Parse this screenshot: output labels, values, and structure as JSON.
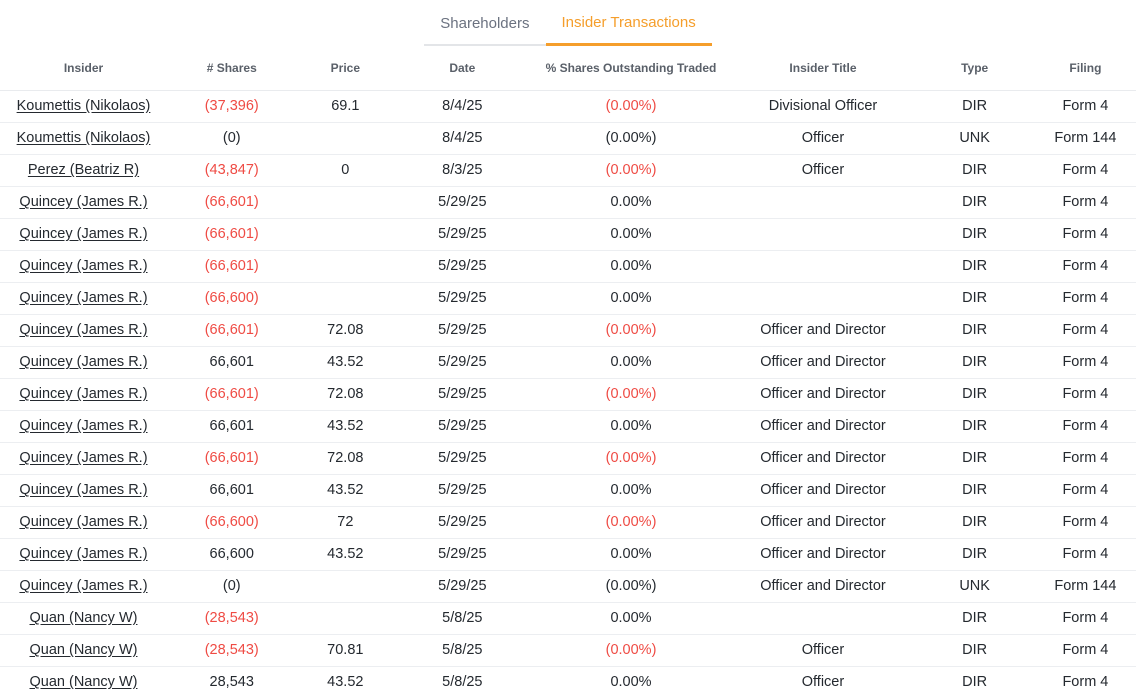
{
  "tabs": [
    {
      "label": "Shareholders",
      "active": false
    },
    {
      "label": "Insider Transactions",
      "active": true
    }
  ],
  "colors": {
    "accent_orange": "#f59e2b",
    "negative_red": "#ef4b44",
    "header_gray": "#5a6069",
    "body_text": "#24292f"
  },
  "table": {
    "columns": [
      "Insider",
      "# Shares",
      "Price",
      "Date",
      "% Shares Outstanding Traded",
      "Insider Title",
      "Type",
      "Filing"
    ],
    "rows": [
      {
        "insider": "Koumettis (Nikolaos)",
        "shares": "(37,396)",
        "shares_neg": true,
        "price": "69.1",
        "date": "8/4/25",
        "pct": "(0.00%)",
        "pct_neg": true,
        "title": "Divisional Officer",
        "type": "DIR",
        "filing": "Form 4"
      },
      {
        "insider": "Koumettis (Nikolaos)",
        "shares": "(0)",
        "shares_neg": false,
        "price": "",
        "date": "8/4/25",
        "pct": "(0.00%)",
        "pct_neg": false,
        "title": "Officer",
        "type": "UNK",
        "filing": "Form 144"
      },
      {
        "insider": "Perez (Beatriz R)",
        "shares": "(43,847)",
        "shares_neg": true,
        "price": "0",
        "date": "8/3/25",
        "pct": "(0.00%)",
        "pct_neg": true,
        "title": "Officer",
        "type": "DIR",
        "filing": "Form 4"
      },
      {
        "insider": "Quincey (James R.)",
        "shares": "(66,601)",
        "shares_neg": true,
        "price": "",
        "date": "5/29/25",
        "pct": "0.00%",
        "pct_neg": false,
        "title": "",
        "type": "DIR",
        "filing": "Form 4"
      },
      {
        "insider": "Quincey (James R.)",
        "shares": "(66,601)",
        "shares_neg": true,
        "price": "",
        "date": "5/29/25",
        "pct": "0.00%",
        "pct_neg": false,
        "title": "",
        "type": "DIR",
        "filing": "Form 4"
      },
      {
        "insider": "Quincey (James R.)",
        "shares": "(66,601)",
        "shares_neg": true,
        "price": "",
        "date": "5/29/25",
        "pct": "0.00%",
        "pct_neg": false,
        "title": "",
        "type": "DIR",
        "filing": "Form 4"
      },
      {
        "insider": "Quincey (James R.)",
        "shares": "(66,600)",
        "shares_neg": true,
        "price": "",
        "date": "5/29/25",
        "pct": "0.00%",
        "pct_neg": false,
        "title": "",
        "type": "DIR",
        "filing": "Form 4"
      },
      {
        "insider": "Quincey (James R.)",
        "shares": "(66,601)",
        "shares_neg": true,
        "price": "72.08",
        "date": "5/29/25",
        "pct": "(0.00%)",
        "pct_neg": true,
        "title": "Officer and Director",
        "type": "DIR",
        "filing": "Form 4"
      },
      {
        "insider": "Quincey (James R.)",
        "shares": "66,601",
        "shares_neg": false,
        "price": "43.52",
        "date": "5/29/25",
        "pct": "0.00%",
        "pct_neg": false,
        "title": "Officer and Director",
        "type": "DIR",
        "filing": "Form 4"
      },
      {
        "insider": "Quincey (James R.)",
        "shares": "(66,601)",
        "shares_neg": true,
        "price": "72.08",
        "date": "5/29/25",
        "pct": "(0.00%)",
        "pct_neg": true,
        "title": "Officer and Director",
        "type": "DIR",
        "filing": "Form 4"
      },
      {
        "insider": "Quincey (James R.)",
        "shares": "66,601",
        "shares_neg": false,
        "price": "43.52",
        "date": "5/29/25",
        "pct": "0.00%",
        "pct_neg": false,
        "title": "Officer and Director",
        "type": "DIR",
        "filing": "Form 4"
      },
      {
        "insider": "Quincey (James R.)",
        "shares": "(66,601)",
        "shares_neg": true,
        "price": "72.08",
        "date": "5/29/25",
        "pct": "(0.00%)",
        "pct_neg": true,
        "title": "Officer and Director",
        "type": "DIR",
        "filing": "Form 4"
      },
      {
        "insider": "Quincey (James R.)",
        "shares": "66,601",
        "shares_neg": false,
        "price": "43.52",
        "date": "5/29/25",
        "pct": "0.00%",
        "pct_neg": false,
        "title": "Officer and Director",
        "type": "DIR",
        "filing": "Form 4"
      },
      {
        "insider": "Quincey (James R.)",
        "shares": "(66,600)",
        "shares_neg": true,
        "price": "72",
        "date": "5/29/25",
        "pct": "(0.00%)",
        "pct_neg": true,
        "title": "Officer and Director",
        "type": "DIR",
        "filing": "Form 4"
      },
      {
        "insider": "Quincey (James R.)",
        "shares": "66,600",
        "shares_neg": false,
        "price": "43.52",
        "date": "5/29/25",
        "pct": "0.00%",
        "pct_neg": false,
        "title": "Officer and Director",
        "type": "DIR",
        "filing": "Form 4"
      },
      {
        "insider": "Quincey (James R.)",
        "shares": "(0)",
        "shares_neg": false,
        "price": "",
        "date": "5/29/25",
        "pct": "(0.00%)",
        "pct_neg": false,
        "title": "Officer and Director",
        "type": "UNK",
        "filing": "Form 144"
      },
      {
        "insider": "Quan (Nancy W)",
        "shares": "(28,543)",
        "shares_neg": true,
        "price": "",
        "date": "5/8/25",
        "pct": "0.00%",
        "pct_neg": false,
        "title": "",
        "type": "DIR",
        "filing": "Form 4"
      },
      {
        "insider": "Quan (Nancy W)",
        "shares": "(28,543)",
        "shares_neg": true,
        "price": "70.81",
        "date": "5/8/25",
        "pct": "(0.00%)",
        "pct_neg": true,
        "title": "Officer",
        "type": "DIR",
        "filing": "Form 4"
      },
      {
        "insider": "Quan (Nancy W)",
        "shares": "28,543",
        "shares_neg": false,
        "price": "43.52",
        "date": "5/8/25",
        "pct": "0.00%",
        "pct_neg": false,
        "title": "Officer",
        "type": "DIR",
        "filing": "Form 4"
      }
    ]
  }
}
